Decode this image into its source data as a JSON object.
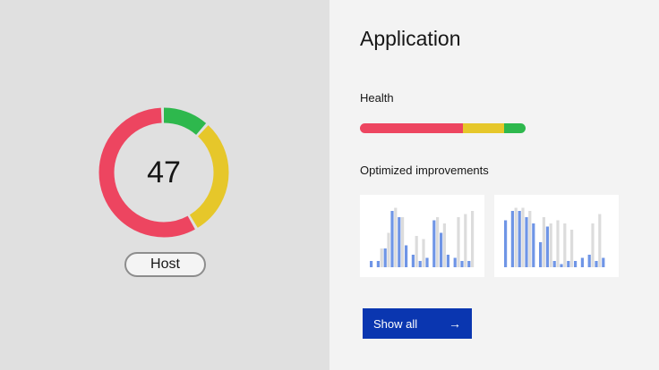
{
  "host_panel": {
    "score": "47",
    "host_label": "Host",
    "donut": [
      {
        "name": "green",
        "value": 0.12,
        "color": "#2eb84d"
      },
      {
        "name": "yellow",
        "value": 0.3,
        "color": "#e6c72a"
      },
      {
        "name": "red",
        "value": 0.58,
        "color": "#ed4560"
      }
    ]
  },
  "application": {
    "title": "Application",
    "health_label": "Health",
    "health_segments": [
      {
        "name": "red",
        "value": 0.62,
        "color": "#ed4560"
      },
      {
        "name": "yellow",
        "value": 0.25,
        "color": "#e6c72a"
      },
      {
        "name": "green",
        "value": 0.13,
        "color": "#2eb84d"
      }
    ],
    "improvements_label": "Optimized improvements",
    "show_all_label": "Show all",
    "show_all_icon": "arrow-right-icon"
  },
  "colors": {
    "bar_primary": "#6f95e6",
    "bar_secondary": "#dcdcdc",
    "button": "#0a36b0"
  },
  "chart_data": [
    {
      "type": "bar",
      "series": [
        {
          "values": [
            0.1,
            0.1,
            0.3,
            0.9,
            0.8,
            0.35,
            0.2,
            0.1,
            0.15,
            0.75,
            0.55,
            0.2,
            0.15,
            0.1,
            0.1
          ]
        },
        {
          "values": [
            0.0,
            0.3,
            0.55,
            0.95,
            0.8,
            0.0,
            0.5,
            0.45,
            0.0,
            0.8,
            0.7,
            0.0,
            0.8,
            0.85,
            0.9
          ]
        }
      ]
    },
    {
      "type": "bar",
      "series": [
        {
          "values": [
            0.75,
            0.9,
            0.9,
            0.8,
            0.7,
            0.4,
            0.65,
            0.1,
            0.05,
            0.1,
            0.1,
            0.15,
            0.2,
            0.1,
            0.15
          ]
        },
        {
          "values": [
            0.0,
            0.95,
            0.95,
            0.9,
            0.0,
            0.8,
            0.7,
            0.75,
            0.7,
            0.6,
            0.0,
            0.0,
            0.7,
            0.85,
            0.0
          ]
        }
      ]
    }
  ]
}
